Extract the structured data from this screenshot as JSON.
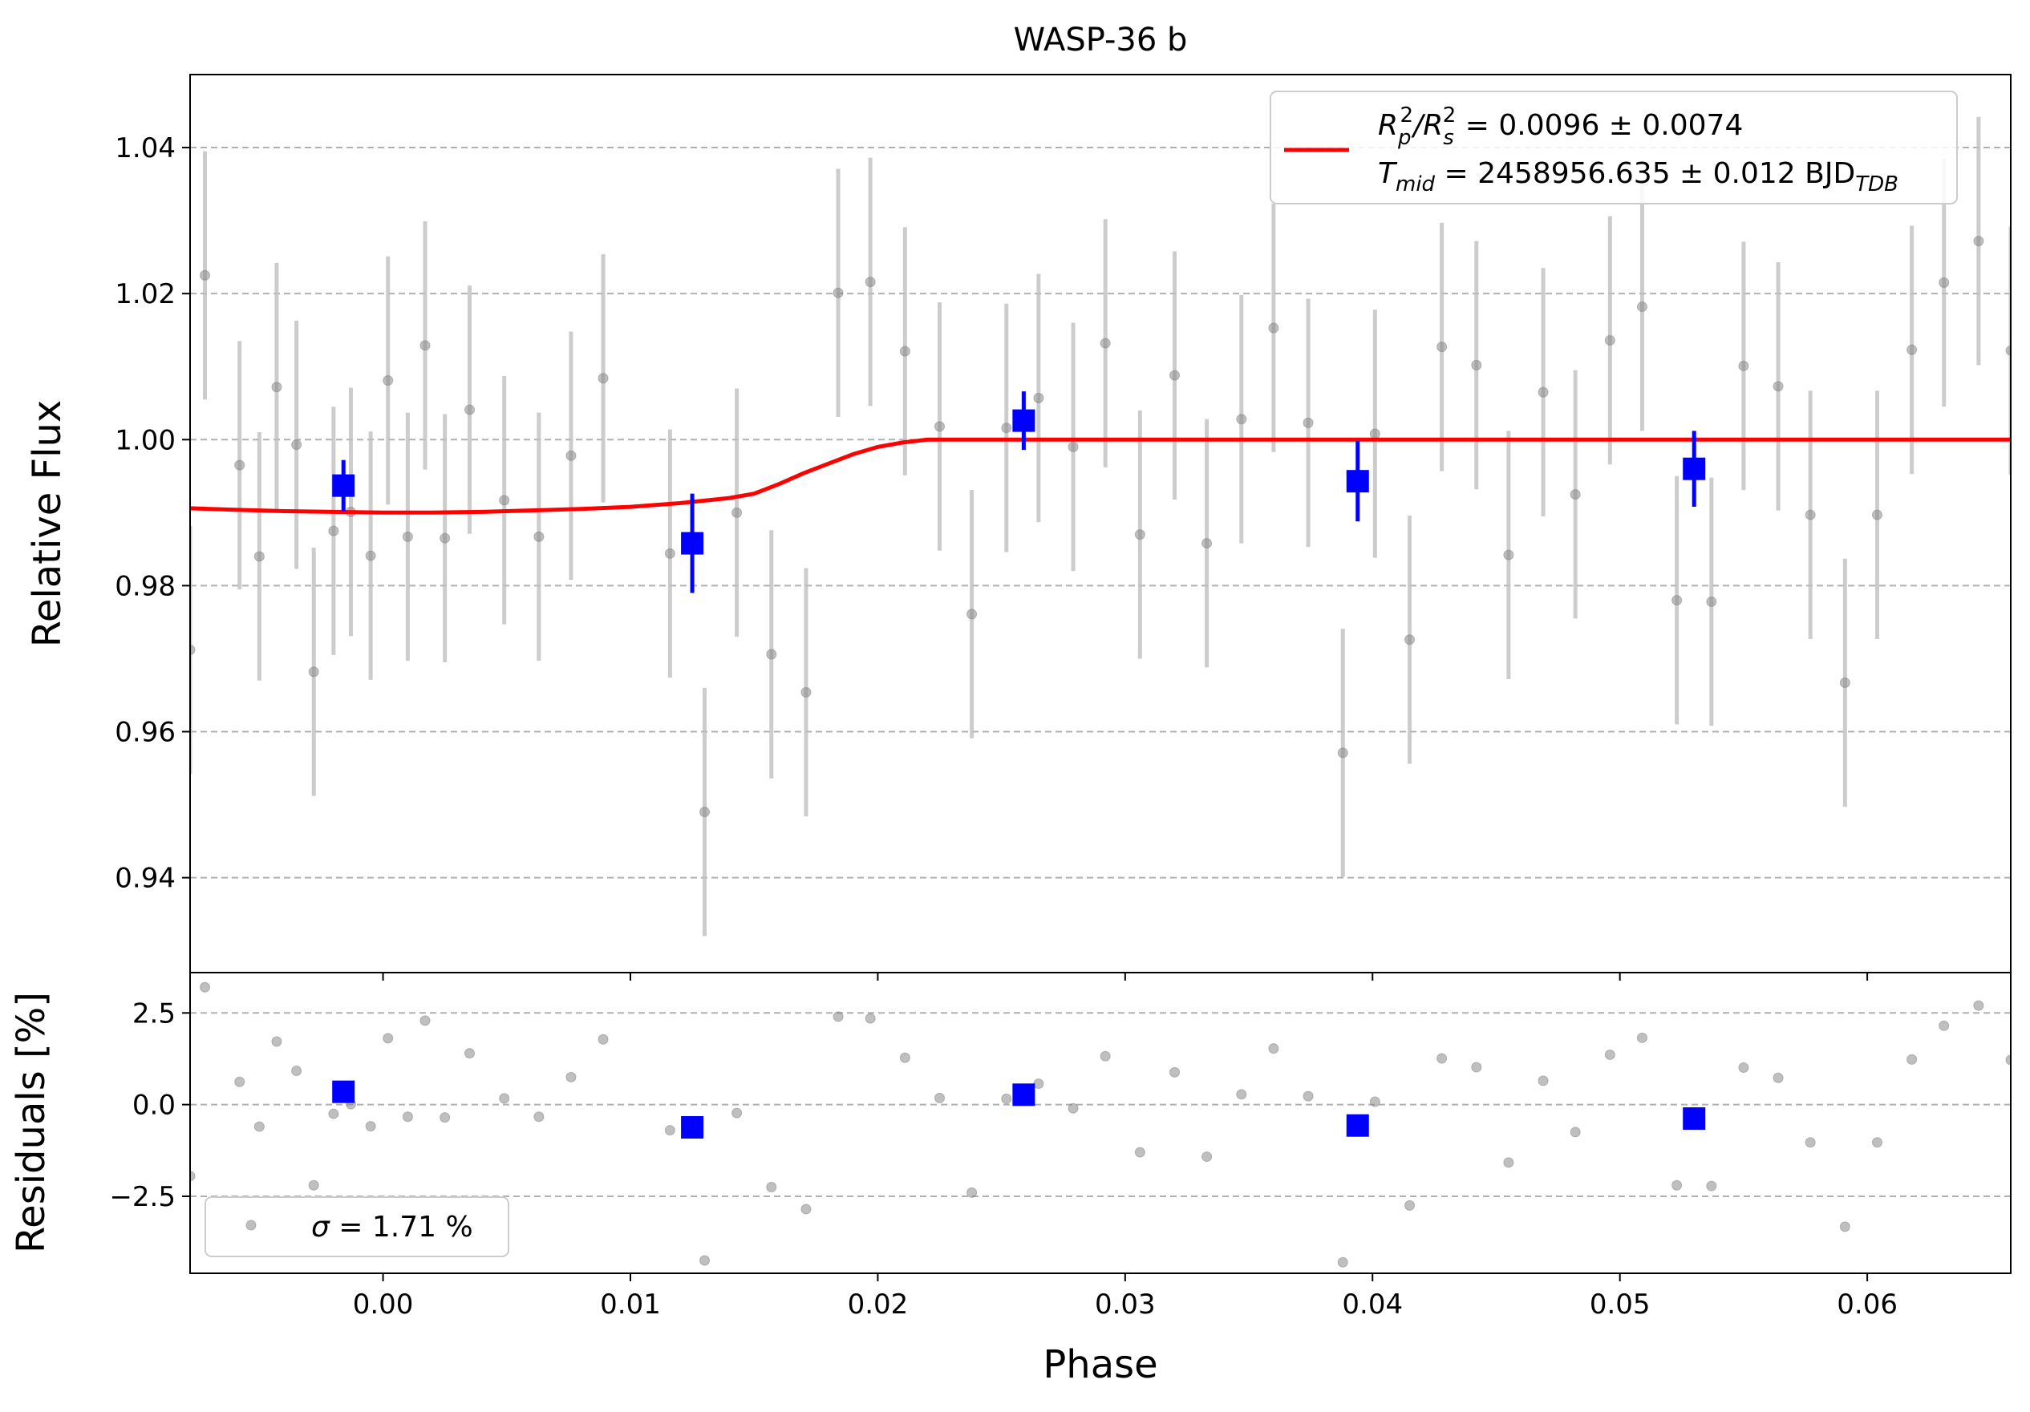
{
  "colors": {
    "model": "#ff0000",
    "binned": "#0000ff",
    "points": "#808080",
    "errorbar": "#bfbfbf",
    "grid": "#b0b0b0"
  },
  "chart_data": {
    "type": "scatter",
    "title": "WASP-36 b",
    "xlabel": "Phase",
    "x_ticks": [
      "0.00",
      "0.01",
      "0.02",
      "0.03",
      "0.04",
      "0.05",
      "0.06"
    ],
    "xlim": [
      -0.0078,
      0.0658
    ],
    "panels": [
      {
        "name": "flux",
        "ylabel": "Relative Flux",
        "ylim": [
          0.927,
          1.05
        ],
        "y_ticks": [
          "0.94",
          "0.96",
          "0.98",
          "1.00",
          "1.02",
          "1.04"
        ],
        "grid_y": true,
        "legend": {
          "location": "upper right",
          "line1": {
            "prefix": "R",
            "sub1": "p",
            "sup1": "2",
            "sep": "/R",
            "sub2": "s",
            "sup2": "2",
            "rest": " = 0.0096 ± 0.0074"
          },
          "line2": {
            "prefix": "T",
            "sub1": "mid",
            "rest": " = 2458956.635 ± 0.012 BJD",
            "sub2": "TDB"
          }
        },
        "model_curve": {
          "x": [
            -0.0078,
            -0.006,
            -0.004,
            -0.002,
            0.0,
            0.002,
            0.004,
            0.006,
            0.008,
            0.01,
            0.012,
            0.014,
            0.015,
            0.016,
            0.017,
            0.018,
            0.019,
            0.02,
            0.021,
            0.022,
            0.0225,
            0.024,
            0.03,
            0.04,
            0.05,
            0.06,
            0.0658
          ],
          "y": [
            0.9906,
            0.9904,
            0.9902,
            0.9901,
            0.99,
            0.99,
            0.9901,
            0.9903,
            0.9905,
            0.9908,
            0.9913,
            0.992,
            0.9926,
            0.9939,
            0.9954,
            0.9967,
            0.998,
            0.999,
            0.9996,
            1.0,
            1.0,
            1.0,
            1.0,
            1.0,
            1.0,
            1.0,
            1.0
          ]
        },
        "points": {
          "x": [
            -0.0078,
            -0.0072,
            -0.0058,
            -0.005,
            -0.0043,
            -0.0035,
            -0.0028,
            -0.002,
            -0.0013,
            -0.0005,
            0.0002,
            0.001,
            0.0017,
            0.0025,
            0.0035,
            0.0049,
            0.0063,
            0.0076,
            0.0089,
            0.0116,
            0.013,
            0.0143,
            0.0157,
            0.0171,
            0.0184,
            0.0197,
            0.0211,
            0.0225,
            0.0238,
            0.0252,
            0.0265,
            0.0279,
            0.0292,
            0.0306,
            0.032,
            0.0333,
            0.0347,
            0.036,
            0.0374,
            0.0388,
            0.0401,
            0.0415,
            0.0428,
            0.0442,
            0.0455,
            0.0469,
            0.0482,
            0.0496,
            0.0509,
            0.0523,
            0.0537,
            0.055,
            0.0564,
            0.0577,
            0.0591,
            0.0604,
            0.0618,
            0.0631,
            0.0645,
            0.0658
          ],
          "y": [
            0.9712,
            1.0225,
            0.9965,
            0.984,
            1.0072,
            0.9993,
            0.9682,
            0.9875,
            0.9901,
            0.9841,
            1.0081,
            0.9867,
            1.0129,
            0.9865,
            1.0041,
            0.9917,
            0.9867,
            0.9978,
            1.0084,
            0.9844,
            0.949,
            0.99,
            0.9706,
            0.9654,
            1.0201,
            1.0216,
            1.0121,
            1.0018,
            0.9761,
            1.0016,
            1.0057,
            0.999,
            1.0132,
            0.987,
            1.0088,
            0.9858,
            1.0028,
            1.0153,
            1.0023,
            0.9571,
            1.0008,
            0.9726,
            1.0127,
            1.0102,
            0.9842,
            1.0065,
            0.9925,
            1.0136,
            1.0182,
            0.978,
            0.9778,
            1.0101,
            1.0073,
            0.9897,
            0.9667,
            0.9897,
            1.0123,
            1.0215,
            1.0272,
            1.0122
          ],
          "err": [
            0.017,
            0.017,
            0.017,
            0.017,
            0.017,
            0.017,
            0.017,
            0.017,
            0.017,
            0.017,
            0.017,
            0.017,
            0.017,
            0.017,
            0.017,
            0.017,
            0.017,
            0.017,
            0.017,
            0.017,
            0.017,
            0.017,
            0.017,
            0.017,
            0.017,
            0.017,
            0.017,
            0.017,
            0.017,
            0.017,
            0.017,
            0.017,
            0.017,
            0.017,
            0.017,
            0.017,
            0.017,
            0.017,
            0.017,
            0.017,
            0.017,
            0.017,
            0.017,
            0.017,
            0.017,
            0.017,
            0.017,
            0.017,
            0.017,
            0.017,
            0.017,
            0.017,
            0.017,
            0.017,
            0.017,
            0.017,
            0.017,
            0.017,
            0.017,
            0.017
          ]
        },
        "binned": {
          "x": [
            -0.0016,
            0.0125,
            0.0259,
            0.0394,
            0.053
          ],
          "y": [
            0.9937,
            0.9858,
            1.0026,
            0.9943,
            0.996
          ],
          "err": [
            0.0035,
            0.0068,
            0.004,
            0.0055,
            0.0052
          ]
        }
      },
      {
        "name": "residuals",
        "ylabel": "Residuals [%]",
        "ylim": [
          -4.6,
          3.6
        ],
        "y_ticks": [
          "−2.5",
          "0.0",
          "2.5"
        ],
        "grid_y": true,
        "legend": {
          "location": "lower left",
          "sigma_symbol": "σ",
          "text": " = 1.71 %"
        },
        "points": {
          "x": [
            -0.0078,
            -0.0072,
            -0.0058,
            -0.005,
            -0.0043,
            -0.0035,
            -0.0028,
            -0.002,
            -0.0013,
            -0.0005,
            0.0002,
            0.001,
            0.0017,
            0.0025,
            0.0035,
            0.0049,
            0.0063,
            0.0076,
            0.0089,
            0.0116,
            0.013,
            0.0143,
            0.0157,
            0.0171,
            0.0184,
            0.0197,
            0.0211,
            0.0225,
            0.0238,
            0.0252,
            0.0265,
            0.0279,
            0.0292,
            0.0306,
            0.032,
            0.0333,
            0.0347,
            0.036,
            0.0374,
            0.0388,
            0.0401,
            0.0415,
            0.0428,
            0.0442,
            0.0455,
            0.0469,
            0.0482,
            0.0496,
            0.0509,
            0.0523,
            0.0537,
            0.055,
            0.0564,
            0.0577,
            0.0591,
            0.0604,
            0.0618,
            0.0631,
            0.0645,
            0.0658
          ],
          "y": [
            -1.95,
            3.2,
            0.62,
            -0.6,
            1.72,
            0.92,
            -2.2,
            -0.25,
            0.01,
            -0.59,
            1.81,
            -0.33,
            2.29,
            -0.35,
            1.4,
            0.17,
            -0.33,
            0.75,
            1.78,
            -0.7,
            -4.25,
            -0.23,
            -2.25,
            -2.85,
            2.4,
            2.35,
            1.28,
            0.18,
            -2.4,
            0.16,
            0.57,
            -0.1,
            1.32,
            -1.3,
            0.88,
            -1.42,
            0.28,
            1.53,
            0.23,
            -4.3,
            0.08,
            -2.75,
            1.26,
            1.02,
            -1.58,
            0.65,
            -0.75,
            1.36,
            1.82,
            -2.2,
            -2.22,
            1.01,
            0.73,
            -1.03,
            -3.33,
            -1.03,
            1.23,
            2.15,
            2.7,
            1.22
          ]
        },
        "binned": {
          "x": [
            -0.0016,
            0.0125,
            0.0259,
            0.0394,
            0.053
          ],
          "y": [
            0.35,
            -0.62,
            0.27,
            -0.57,
            -0.38
          ]
        }
      }
    ]
  }
}
